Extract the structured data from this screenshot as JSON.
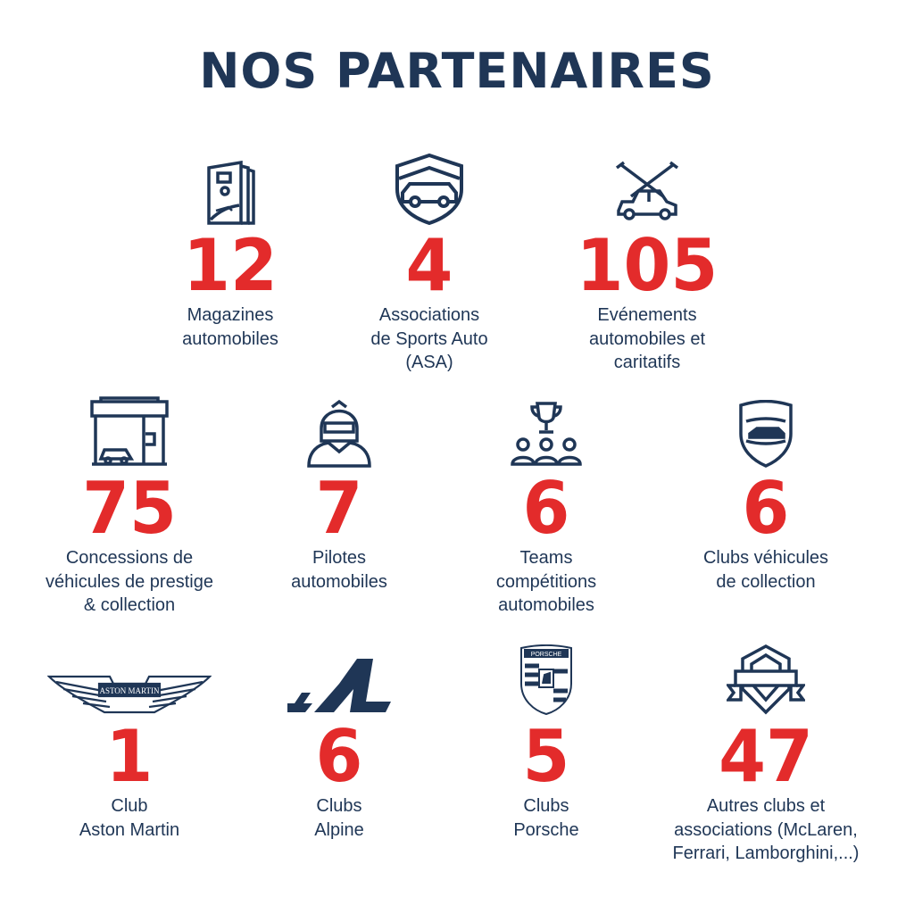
{
  "title": "NOS PARTENAIRES",
  "colors": {
    "navy": "#1f3656",
    "red": "#e32b2b"
  },
  "items": [
    {
      "icon": "magazine-icon",
      "value": "12",
      "label": "Magazines\nautomobiles"
    },
    {
      "icon": "shield-car-icon",
      "value": "4",
      "label": "Associations\nde Sports Auto\n(ASA)"
    },
    {
      "icon": "event-car-spotlights-icon",
      "value": "105",
      "label": "Evénements\nautomobiles et\ncaritatifs"
    },
    {
      "icon": "dealership-icon",
      "value": "75",
      "label": "Concessions de\nvéhicules de prestige\n& collection"
    },
    {
      "icon": "racing-driver-helmet-icon",
      "value": "7",
      "label": "Pilotes\nautomobiles"
    },
    {
      "icon": "team-trophy-icon",
      "value": "6",
      "label": "Teams\ncompétitions\nautomobiles"
    },
    {
      "icon": "classic-car-shield-icon",
      "value": "6",
      "label": "Clubs véhicules\nde collection"
    },
    {
      "icon": "aston-martin-logo",
      "value": "1",
      "label": "Club\nAston Martin",
      "logo_text": "ASTON MARTIN"
    },
    {
      "icon": "alpine-logo",
      "value": "6",
      "label": "Clubs\nAlpine"
    },
    {
      "icon": "porsche-logo",
      "value": "5",
      "label": "Clubs\nPorsche",
      "logo_text": "PORSCHE"
    },
    {
      "icon": "club-badge-icon",
      "value": "47",
      "label": "Autres clubs et\nassociations (McLaren,\nFerrari, Lamborghini,...)"
    }
  ]
}
